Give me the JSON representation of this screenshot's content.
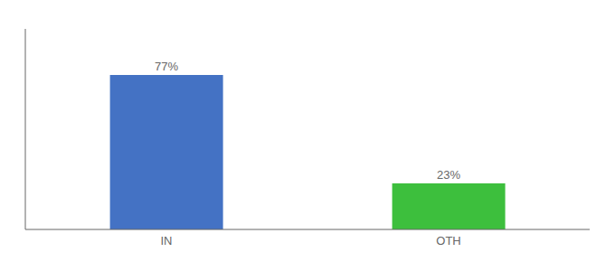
{
  "chart_data": {
    "type": "bar",
    "categories": [
      "IN",
      "OTH"
    ],
    "values": [
      77,
      23
    ],
    "value_labels": [
      "77%",
      "23%"
    ],
    "colors": [
      "#4472c4",
      "#3dbf3d"
    ],
    "ylim": [
      0,
      100
    ],
    "data_labels": true,
    "tick_labels": "x",
    "grid": false
  }
}
